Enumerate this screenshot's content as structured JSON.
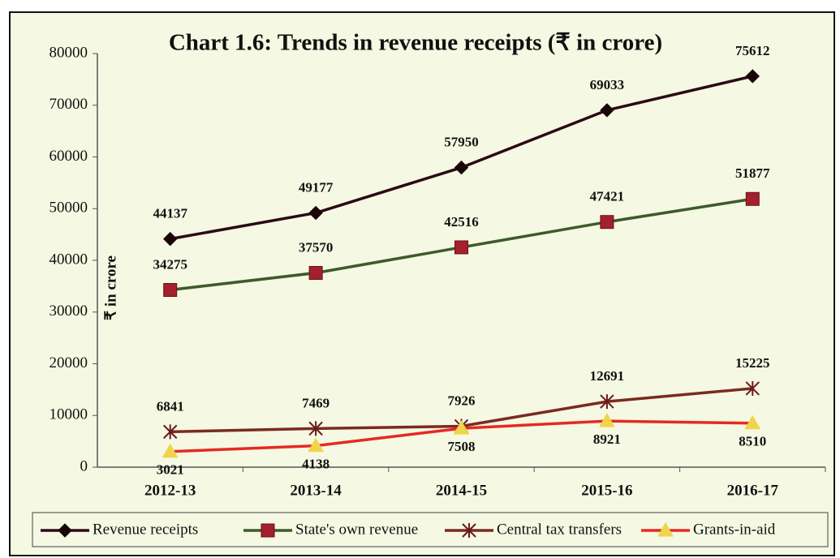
{
  "chart_data": {
    "type": "line",
    "title": "Chart 1.6: Trends in revenue receipts (₹ in crore)",
    "y_label": "₹ in crore",
    "categories": [
      "2012-13",
      "2013-14",
      "2014-15",
      "2015-16",
      "2016-17"
    ],
    "series": [
      {
        "name": "Revenue receipts",
        "color": "#2a0a16",
        "marker": "diamond",
        "marker_color": "#1a0508",
        "label_position": "above",
        "values": [
          44137,
          49177,
          57950,
          69033,
          75612
        ]
      },
      {
        "name": "State's own revenue",
        "color": "#3e5a2c",
        "marker": "square",
        "marker_color": "#a3202c",
        "label_position": "above",
        "values": [
          34275,
          37570,
          42516,
          47421,
          51877
        ]
      },
      {
        "name": "Central tax transfers",
        "color": "#7a2a22",
        "marker": "star",
        "marker_color": "#6a1a1a",
        "label_position": "above",
        "values": [
          6841,
          7469,
          7926,
          12691,
          15225
        ]
      },
      {
        "name": "Grants-in-aid",
        "color": "#e52a22",
        "marker": "triangle",
        "marker_color": "#f0d44a",
        "label_position": "below",
        "values": [
          3021,
          4138,
          7508,
          8921,
          8510
        ]
      }
    ],
    "ylim": [
      0,
      80000
    ],
    "yticks": [
      0,
      10000,
      20000,
      30000,
      40000,
      50000,
      60000,
      70000,
      80000
    ],
    "grid": false,
    "legend": "bottom"
  }
}
